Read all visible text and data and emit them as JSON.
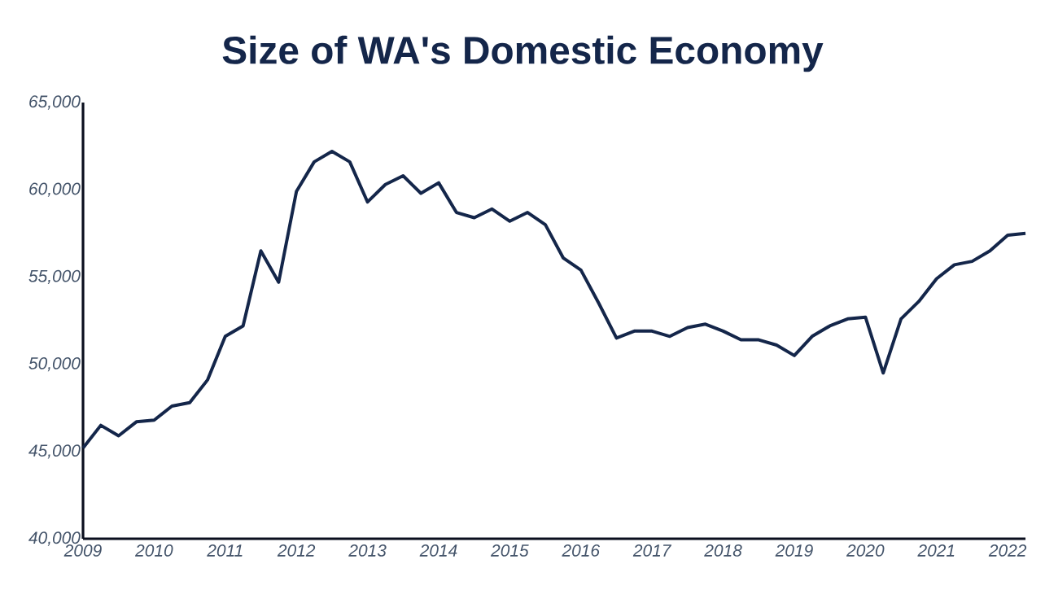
{
  "chart_data": {
    "type": "line",
    "title": "Size of WA's Domestic Economy",
    "x": [
      2009.0,
      2009.25,
      2009.5,
      2009.75,
      2010.0,
      2010.25,
      2010.5,
      2010.75,
      2011.0,
      2011.25,
      2011.5,
      2011.75,
      2012.0,
      2012.25,
      2012.5,
      2012.75,
      2013.0,
      2013.25,
      2013.5,
      2013.75,
      2014.0,
      2014.25,
      2014.5,
      2014.75,
      2015.0,
      2015.25,
      2015.5,
      2015.75,
      2016.0,
      2016.25,
      2016.5,
      2016.75,
      2017.0,
      2017.25,
      2017.5,
      2017.75,
      2018.0,
      2018.25,
      2018.5,
      2018.75,
      2019.0,
      2019.25,
      2019.5,
      2019.75,
      2020.0,
      2020.25,
      2020.5,
      2020.75,
      2021.0,
      2021.25,
      2021.5,
      2021.75,
      2022.0,
      2022.25
    ],
    "series": [
      {
        "color": "#14264a",
        "values": [
          45200,
          46500,
          45900,
          46700,
          46800,
          47600,
          47800,
          49100,
          51600,
          52200,
          56500,
          54700,
          59900,
          61600,
          62200,
          61600,
          59300,
          60300,
          60800,
          59800,
          60400,
          58700,
          58400,
          58900,
          58200,
          58700,
          58000,
          56100,
          55400,
          53500,
          51500,
          51900,
          51900,
          51600,
          52100,
          52300,
          51900,
          51400,
          51400,
          51100,
          50500,
          51600,
          52200,
          52600,
          52700,
          49500,
          52600,
          53600,
          54900,
          55700,
          55900,
          56500,
          57400,
          57500
        ]
      }
    ],
    "xlim": [
      2009,
      2022.25
    ],
    "xticks": [
      2009,
      2010,
      2011,
      2012,
      2013,
      2014,
      2015,
      2016,
      2017,
      2018,
      2019,
      2020,
      2021,
      2022
    ],
    "ylim": [
      40000,
      65000
    ],
    "yticks": [
      {
        "value": 40000,
        "label": "40,000"
      },
      {
        "value": 45000,
        "label": "45,000"
      },
      {
        "value": 50000,
        "label": "50,000"
      },
      {
        "value": 55000,
        "label": "55,000"
      },
      {
        "value": 60000,
        "label": "60,000"
      },
      {
        "value": 65000,
        "label": "65,000"
      }
    ],
    "grid": false,
    "legend": false,
    "marker": "none",
    "line_style": "solid"
  }
}
